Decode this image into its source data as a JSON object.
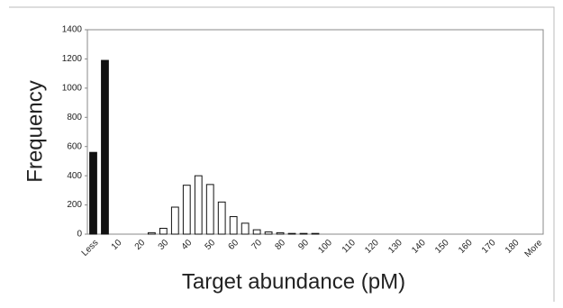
{
  "chart_data": {
    "type": "bar",
    "x_label": "Target abundance (pM)",
    "y_label": "Frequency",
    "categories": [
      "Less",
      null,
      "10",
      null,
      "20",
      null,
      "30",
      null,
      "40",
      null,
      "50",
      null,
      "60",
      null,
      "70",
      null,
      "80",
      null,
      "90",
      null,
      "100",
      null,
      "110",
      null,
      "120",
      null,
      "130",
      null,
      "140",
      null,
      "150",
      null,
      "160",
      null,
      "170",
      null,
      "180",
      null,
      "More"
    ],
    "values": [
      560,
      1190,
      0,
      0,
      0,
      10,
      40,
      185,
      335,
      400,
      340,
      220,
      120,
      75,
      30,
      15,
      10,
      5,
      5,
      5,
      0,
      0,
      0,
      0,
      0,
      0,
      0,
      0,
      0,
      0,
      0,
      0,
      0,
      0,
      0,
      0,
      0,
      0,
      0
    ],
    "colors": [
      "#111111",
      "#111111",
      "#ffffff",
      "#ffffff",
      "#ffffff",
      "#ffffff",
      "#ffffff",
      "#ffffff",
      "#ffffff",
      "#ffffff",
      "#ffffff",
      "#ffffff",
      "#ffffff",
      "#ffffff",
      "#ffffff",
      "#ffffff",
      "#ffffff",
      "#ffffff",
      "#ffffff",
      "#ffffff",
      "#ffffff",
      "#ffffff",
      "#ffffff",
      "#ffffff",
      "#ffffff",
      "#ffffff",
      "#ffffff",
      "#ffffff",
      "#ffffff",
      "#ffffff",
      "#ffffff",
      "#ffffff",
      "#ffffff",
      "#ffffff",
      "#ffffff",
      "#ffffff",
      "#ffffff",
      "#ffffff",
      "#ffffff"
    ],
    "ylim": [
      0,
      1400
    ],
    "yticks": [
      0,
      200,
      400,
      600,
      800,
      1000,
      1200,
      1400
    ]
  }
}
